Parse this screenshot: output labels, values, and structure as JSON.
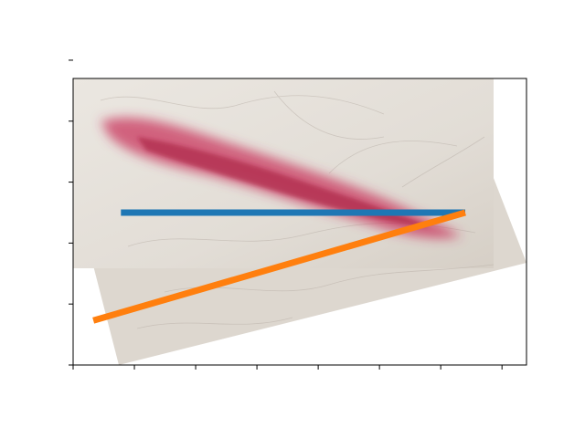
{
  "chart_data": {
    "type": "line",
    "title": "",
    "xlabel": "",
    "ylabel": "",
    "x_ticks": [
      0,
      1,
      2,
      3,
      4,
      5,
      6,
      7
    ],
    "y_ticks": [
      0,
      1,
      2,
      3,
      4,
      5
    ],
    "xlim": [
      0,
      7.4
    ],
    "ylim": [
      4.7,
      0
    ],
    "grid": false,
    "tick_labels_visible": false,
    "background_image": "skin-lesion-photo",
    "series": [
      {
        "color": "#1f77b4",
        "x": [
          0.78,
          6.4
        ],
        "y": [
          2.5,
          2.5
        ]
      },
      {
        "color": "#ff7f0e",
        "x": [
          0.33,
          6.4
        ],
        "y": [
          0.73,
          2.5
        ]
      }
    ],
    "colors": {
      "skin": "#e6e1da",
      "skin_shadow": "#d3ccc3",
      "lesion": "#c9345e",
      "lesion_dark": "#a8203f"
    }
  }
}
